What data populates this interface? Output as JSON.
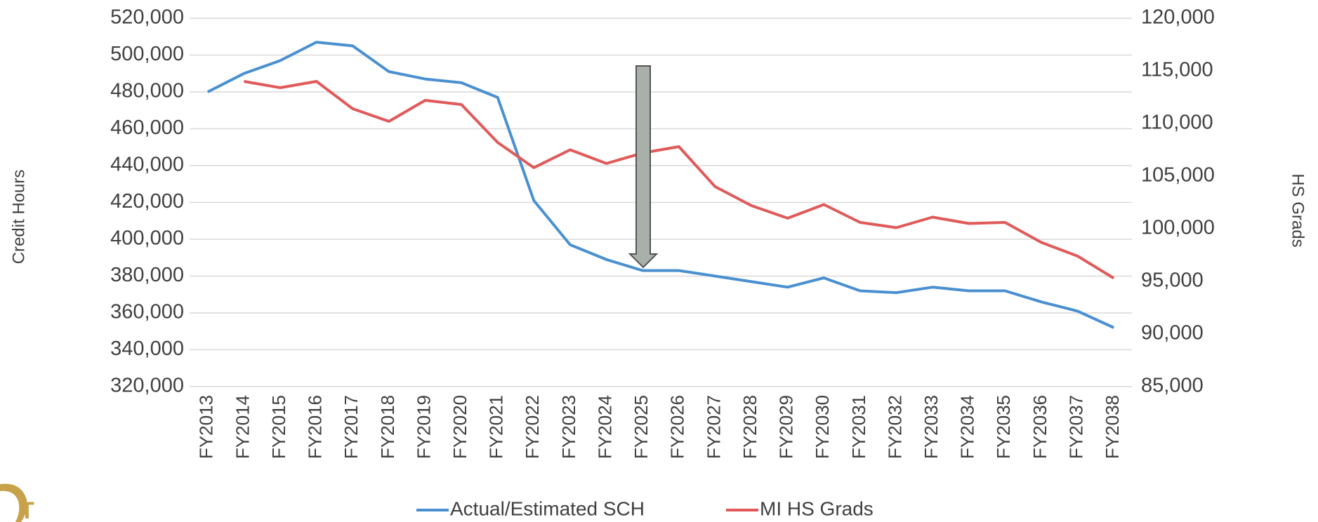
{
  "chart_data": {
    "type": "line",
    "y_label": "Credit Hours",
    "y2_label": "HS Grads",
    "categories": [
      "FY2013",
      "FY2014",
      "FY2015",
      "FY2016",
      "FY2017",
      "FY2018",
      "FY2019",
      "FY2020",
      "FY2021",
      "FY2022",
      "FY2023",
      "FY2024",
      "FY2025",
      "FY2026",
      "FY2027",
      "FY2028",
      "FY2029",
      "FY2030",
      "FY2031",
      "FY2032",
      "FY2033",
      "FY2034",
      "FY2035",
      "FY2036",
      "FY2037",
      "FY2038"
    ],
    "series": [
      {
        "name": "Actual/Estimated SCH",
        "color": "#4a90d0",
        "axis": "y",
        "values": [
          480000,
          490000,
          497000,
          507000,
          505000,
          491000,
          487000,
          485000,
          477000,
          421000,
          397000,
          389000,
          383000,
          383000,
          380000,
          377000,
          374000,
          379000,
          372000,
          371000,
          374000,
          372000,
          372000,
          366000,
          361000,
          352000
        ]
      },
      {
        "name": "MI HS Grads",
        "color": "#e05a5a",
        "axis": "y2",
        "values": [
          null,
          114000,
          113400,
          114000,
          111400,
          110200,
          112200,
          111800,
          108200,
          105800,
          107500,
          106200,
          107200,
          107800,
          104000,
          102200,
          101000,
          102300,
          100600,
          100100,
          101100,
          100500,
          100600,
          98700,
          97400,
          95300
        ]
      }
    ],
    "ylim": [
      320000,
      520000
    ],
    "yticks": [
      {
        "value": 320000,
        "label": "320,000"
      },
      {
        "value": 340000,
        "label": "340,000"
      },
      {
        "value": 360000,
        "label": "360,000"
      },
      {
        "value": 380000,
        "label": "380,000"
      },
      {
        "value": 400000,
        "label": "400,000"
      },
      {
        "value": 420000,
        "label": "420,000"
      },
      {
        "value": 440000,
        "label": "440,000"
      },
      {
        "value": 460000,
        "label": "460,000"
      },
      {
        "value": 480000,
        "label": "480,000"
      },
      {
        "value": 500000,
        "label": "500,000"
      },
      {
        "value": 520000,
        "label": "520,000"
      }
    ],
    "y2lim": [
      85000,
      120000
    ],
    "y2ticks": [
      {
        "value": 85000,
        "label": "85,000"
      },
      {
        "value": 90000,
        "label": "90,000"
      },
      {
        "value": 95000,
        "label": "95,000"
      },
      {
        "value": 100000,
        "label": "100,000"
      },
      {
        "value": 105000,
        "label": "105,000"
      },
      {
        "value": 110000,
        "label": "110,000"
      },
      {
        "value": 115000,
        "label": "115,000"
      },
      {
        "value": 120000,
        "label": "120,000"
      }
    ],
    "grid": true
  }
}
